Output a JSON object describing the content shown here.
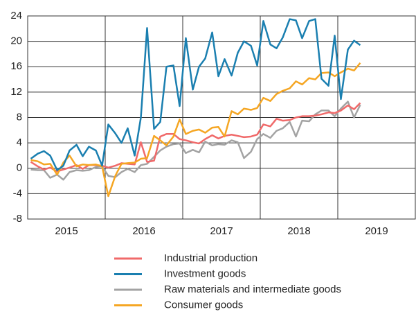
{
  "chart_data": {
    "type": "line",
    "x": [
      2015.04,
      2015.13,
      2015.21,
      2015.29,
      2015.38,
      2015.46,
      2015.54,
      2015.63,
      2015.71,
      2015.79,
      2015.88,
      2015.96,
      2016.04,
      2016.13,
      2016.21,
      2016.29,
      2016.38,
      2016.46,
      2016.54,
      2016.63,
      2016.71,
      2016.79,
      2016.88,
      2016.96,
      2017.04,
      2017.13,
      2017.21,
      2017.29,
      2017.38,
      2017.46,
      2017.54,
      2017.63,
      2017.71,
      2017.79,
      2017.88,
      2017.96,
      2018.04,
      2018.13,
      2018.21,
      2018.29,
      2018.38,
      2018.46,
      2018.54,
      2018.63,
      2018.71,
      2018.79,
      2018.88,
      2018.96,
      2019.04,
      2019.13,
      2019.21,
      2019.29
    ],
    "series": [
      {
        "name": "Industrial production",
        "color": "#f06a6a",
        "values": [
          1.0,
          0.3,
          -0.2,
          0.1,
          -0.5,
          -0.2,
          0.1,
          0.5,
          -0.1,
          0.5,
          0.5,
          0.4,
          0.1,
          0.4,
          0.8,
          0.7,
          0.6,
          4.1,
          1.0,
          1.2,
          5,
          5.4,
          5.4,
          4.6,
          4.4,
          4.1,
          3.9,
          4.6,
          5.2,
          4.7,
          5.1,
          5.3,
          5.1,
          4.9,
          5,
          5.3,
          6.9,
          6.6,
          7.8,
          7.5,
          7.6,
          8,
          8.2,
          8.2,
          8.3,
          8.5,
          8.8,
          8.7,
          9.1,
          9.9,
          9.3,
          10.3
        ]
      },
      {
        "name": "Investment goods",
        "color": "#1a7fb0",
        "values": [
          1.5,
          2.3,
          2.7,
          2,
          -0.3,
          0.4,
          2.8,
          3.7,
          1.9,
          3.4,
          2.8,
          0.4,
          6.9,
          5.5,
          4,
          6.3,
          2,
          8,
          22.1,
          6.2,
          7.3,
          16,
          16.2,
          9.8,
          20.5,
          12.4,
          16,
          17.3,
          21.4,
          14.5,
          17.2,
          14.6,
          18.2,
          20,
          19.3,
          16.2,
          23.2,
          19.5,
          18.9,
          20.6,
          23.5,
          23.3,
          20.5,
          23.2,
          23.5,
          14.1,
          13,
          20.9,
          10.9,
          18.7,
          20.1,
          19.4
        ]
      },
      {
        "name": "Raw materials and intermediate goods",
        "color": "#a3a3a3",
        "values": [
          -0.2,
          -0.3,
          -0.3,
          -1.5,
          -1,
          -1.8,
          -0.6,
          -0.3,
          -0.4,
          -0.3,
          0.2,
          0.3,
          -1.2,
          -1.4,
          -0.6,
          -0.1,
          -0.6,
          0.5,
          0.7,
          1.8,
          2.8,
          3.4,
          3.8,
          3.9,
          2.4,
          2.9,
          2.5,
          4.2,
          3.6,
          3.8,
          3.7,
          4.4,
          4.1,
          1.6,
          2.6,
          4.6,
          5.4,
          4.8,
          5.9,
          6.3,
          7.3,
          5,
          7.5,
          7.4,
          8.5,
          9.1,
          9.1,
          8.2,
          9.4,
          10.5,
          8,
          10
        ]
      },
      {
        "name": "Consumer goods",
        "color": "#f5a623",
        "values": [
          1.3,
          1.1,
          0.6,
          0.7,
          -1,
          0.9,
          2,
          0.3,
          0.6,
          0.5,
          0.6,
          0.3,
          -4.4,
          -1.2,
          0.7,
          0.8,
          0.9,
          1.5,
          1.6,
          5.1,
          4.4,
          3.6,
          5,
          7.7,
          5.4,
          5.9,
          6.1,
          5.6,
          6.4,
          6.5,
          5,
          9,
          8.5,
          9.4,
          9.2,
          9.5,
          11.1,
          10.6,
          11.7,
          12.2,
          12.6,
          13.7,
          13.2,
          14.2,
          14,
          15,
          15.1,
          14.5,
          15.1,
          15.7,
          15.4,
          16.6
        ]
      }
    ],
    "xlim": [
      2015,
      2020
    ],
    "xticks": [
      2015,
      2016,
      2017,
      2018,
      2019
    ],
    "ylim": [
      -8,
      24
    ],
    "yticks": [
      -8,
      -4,
      0,
      4,
      8,
      12,
      16,
      20,
      24
    ],
    "grid": true
  }
}
